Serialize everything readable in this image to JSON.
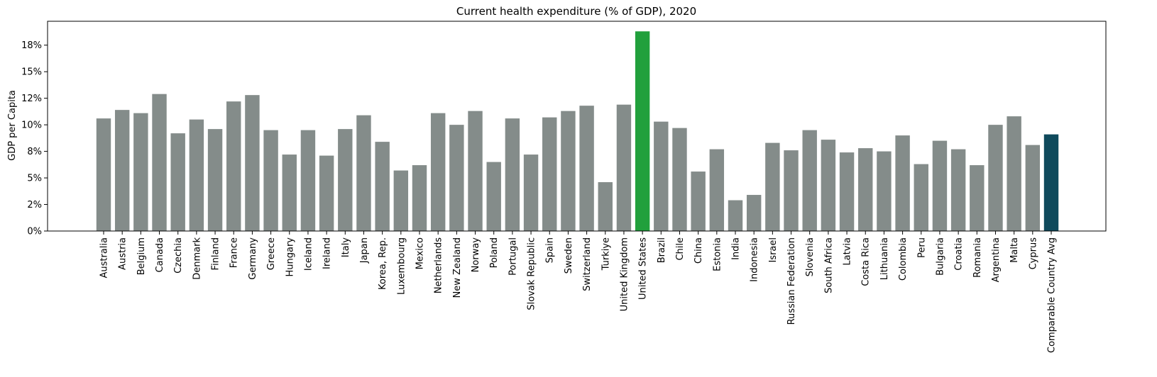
{
  "chart_data": {
    "type": "bar",
    "title": "Current health expenditure (% of GDP), 2020",
    "xlabel": "",
    "ylabel": "GDP per Capita",
    "ylim": [
      0,
      19.75
    ],
    "grid": false,
    "y_ticks": [
      0,
      2.5,
      5,
      7.5,
      10,
      12.5,
      15,
      17.5
    ],
    "y_tick_labels": [
      "0%",
      "2%",
      "5%",
      "8%",
      "10%",
      "12%",
      "15%",
      "18%"
    ],
    "colors": {
      "default": "#848c8a",
      "highlight": "#21a03c",
      "average": "#0f4a5c"
    },
    "categories": [
      "Australia",
      "Austria",
      "Belgium",
      "Canada",
      "Czechia",
      "Denmark",
      "Finland",
      "France",
      "Germany",
      "Greece",
      "Hungary",
      "Iceland",
      "Ireland",
      "Italy",
      "Japan",
      "Korea, Rep.",
      "Luxembourg",
      "Mexico",
      "Netherlands",
      "New Zealand",
      "Norway",
      "Poland",
      "Portugal",
      "Slovak Republic",
      "Spain",
      "Sweden",
      "Switzerland",
      "Turkiye",
      "United Kingdom",
      "United States",
      "Brazil",
      "Chile",
      "China",
      "Estonia",
      "India",
      "Indonesia",
      "Israel",
      "Russian Federation",
      "Slovenia",
      "South Africa",
      "Latvia",
      "Costa Rica",
      "Lithuania",
      "Colombia",
      "Peru",
      "Bulgaria",
      "Croatia",
      "Romania",
      "Argentina",
      "Malta",
      "Cyprus",
      "Comparable Country Avg"
    ],
    "values": [
      10.6,
      11.4,
      11.1,
      12.9,
      9.2,
      10.5,
      9.6,
      12.2,
      12.8,
      9.5,
      7.2,
      9.5,
      7.1,
      9.6,
      10.9,
      8.4,
      5.7,
      6.2,
      11.1,
      10.0,
      11.3,
      6.5,
      10.6,
      7.2,
      10.7,
      11.3,
      11.8,
      4.6,
      11.9,
      18.8,
      10.3,
      9.7,
      5.6,
      7.7,
      2.9,
      3.4,
      8.3,
      7.6,
      9.5,
      8.6,
      7.4,
      7.8,
      7.5,
      9.0,
      6.3,
      8.5,
      7.7,
      6.2,
      10.0,
      10.8,
      8.1,
      9.1
    ],
    "highlights": {
      "United States": "highlight",
      "Comparable Country Avg": "average"
    }
  }
}
